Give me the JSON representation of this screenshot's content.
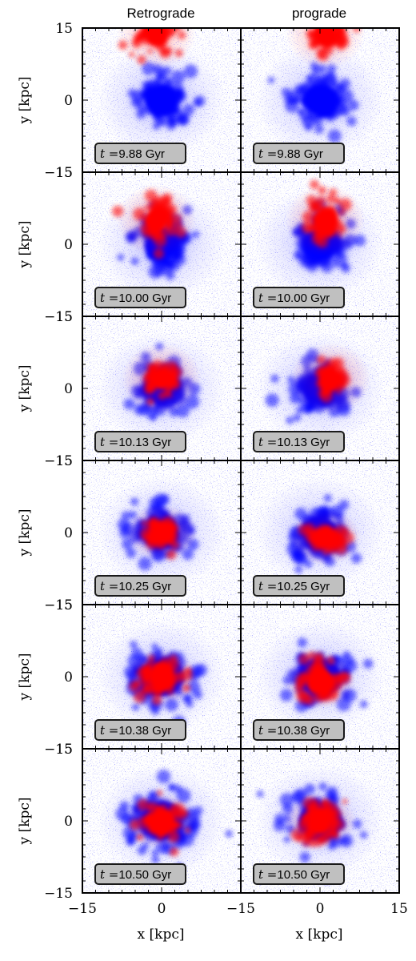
{
  "chart_data": {
    "type": "scatter",
    "column_titles": [
      "Retrograde",
      "prograde"
    ],
    "times_gyr": [
      "10.50",
      "9.88",
      "10.00",
      "10.13",
      "10.25",
      "10.38"
    ],
    "time_label_prefix": "t =",
    "time_label_unit": "Gyr",
    "xlabel": "x [kpc]",
    "ylabel": "y [kpc]",
    "xlim": [
      -15,
      15
    ],
    "ylim": [
      -15,
      15
    ],
    "x_tick_labels_left": [
      "−15",
      "0",
      ""
    ],
    "x_tick_labels_right": [
      "−15",
      "0",
      "15"
    ],
    "y_tick_labels": [
      "15",
      "0",
      "−15"
    ],
    "y_axis_labels": [
      "y [kpc]",
      "y [kpc]",
      "y [kpc]",
      "y [kpc]",
      "y [kpc]",
      "y [kpc]"
    ],
    "series": [
      {
        "name": "",
        "color": "#0000ff"
      },
      {
        "name": "",
        "color": "#ff0000"
      }
    ],
    "panels": [
      {
        "column": "Retrograde",
        "time": "9.88",
        "blue_center": [
          0,
          0
        ],
        "red_center": [
          -1,
          14
        ]
      },
      {
        "column": "prograde",
        "time": "9.88",
        "blue_center": [
          0,
          0
        ],
        "red_center": [
          1,
          14
        ]
      },
      {
        "column": "Retrograde",
        "time": "10.00",
        "blue_center": [
          0,
          0
        ],
        "red_center": [
          -1,
          5
        ]
      },
      {
        "column": "prograde",
        "time": "10.00",
        "blue_center": [
          0,
          0
        ],
        "red_center": [
          1,
          5
        ]
      },
      {
        "column": "Retrograde",
        "time": "10.13",
        "blue_center": [
          0,
          0
        ],
        "red_center": [
          0,
          2
        ]
      },
      {
        "column": "prograde",
        "time": "10.13",
        "blue_center": [
          0,
          0
        ],
        "red_center": [
          2,
          2
        ]
      },
      {
        "column": "Retrograde",
        "time": "10.25",
        "blue_center": [
          0,
          0
        ],
        "red_center": [
          0,
          0
        ]
      },
      {
        "column": "prograde",
        "time": "10.25",
        "blue_center": [
          0,
          0
        ],
        "red_center": [
          1,
          -1
        ]
      },
      {
        "column": "Retrograde",
        "time": "10.38",
        "blue_center": [
          0,
          0
        ],
        "red_center": [
          0,
          0
        ]
      },
      {
        "column": "prograde",
        "time": "10.38",
        "blue_center": [
          0,
          0
        ],
        "red_center": [
          0,
          -1
        ]
      },
      {
        "column": "Retrograde",
        "time": "10.50",
        "blue_center": [
          0,
          0
        ],
        "red_center": [
          0,
          0
        ]
      },
      {
        "column": "prograde",
        "time": "10.50",
        "blue_center": [
          0,
          0
        ],
        "red_center": [
          0,
          0
        ]
      }
    ],
    "grid": false,
    "legend": "none"
  }
}
